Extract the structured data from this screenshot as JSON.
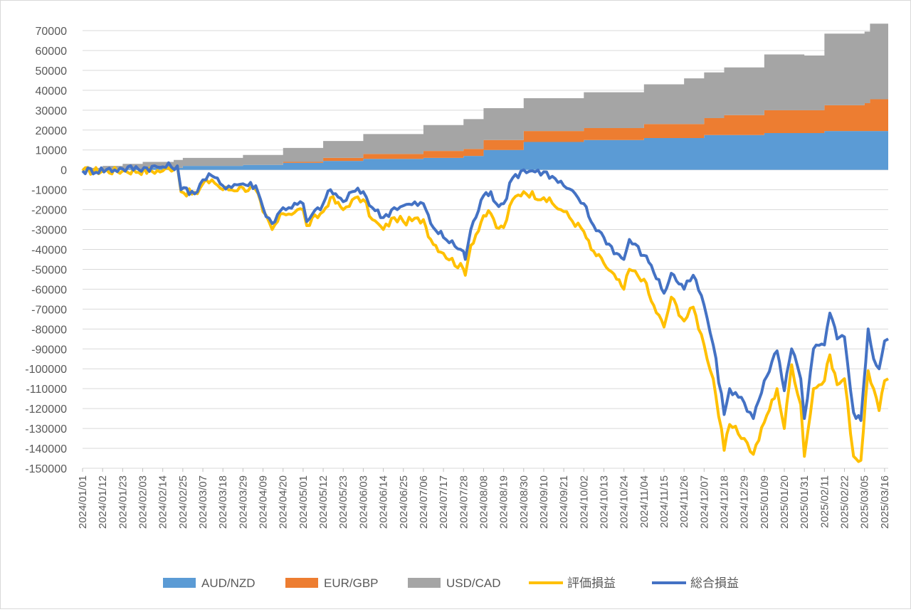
{
  "chart_data": {
    "type": "area+line",
    "title": "",
    "xlabel": "",
    "ylabel": "",
    "ylim": [
      -150000,
      70000
    ],
    "y_step": 10000,
    "xlim": [
      "2024/01/01",
      "2025/03/18"
    ],
    "grid": "horizontal",
    "legend_position": "bottom",
    "x_tick_labels": [
      "2024/01/01",
      "2024/01/12",
      "2024/01/23",
      "2024/02/03",
      "2024/02/14",
      "2024/02/25",
      "2024/03/07",
      "2024/03/18",
      "2024/03/29",
      "2024/04/09",
      "2024/04/20",
      "2024/05/01",
      "2024/05/12",
      "2024/05/23",
      "2024/06/03",
      "2024/06/14",
      "2024/06/25",
      "2024/07/06",
      "2024/07/17",
      "2024/07/28",
      "2024/08/08",
      "2024/08/19",
      "2024/08/30",
      "2024/09/10",
      "2024/09/21",
      "2024/10/02",
      "2024/10/13",
      "2024/10/24",
      "2024/11/04",
      "2024/11/15",
      "2024/11/26",
      "2024/12/07",
      "2024/12/18",
      "2024/12/29",
      "2025/01/09",
      "2025/01/20",
      "2025/01/31",
      "2025/02/11",
      "2025/02/22",
      "2025/03/05",
      "2025/03/16"
    ],
    "stacked_area_series": [
      {
        "name": "AUD/NZD",
        "color": "#5B9BD5",
        "points": [
          [
            "2024/01/01",
            0
          ],
          [
            "2024/01/12",
            500
          ],
          [
            "2024/02/03",
            1000
          ],
          [
            "2024/02/25",
            2000
          ],
          [
            "2024/03/29",
            2500
          ],
          [
            "2024/04/20",
            3500
          ],
          [
            "2024/05/12",
            4500
          ],
          [
            "2024/06/03",
            5500
          ],
          [
            "2024/07/06",
            6000
          ],
          [
            "2024/07/28",
            7000
          ],
          [
            "2024/08/08",
            10000
          ],
          [
            "2024/08/30",
            14000
          ],
          [
            "2024/10/02",
            15000
          ],
          [
            "2024/11/04",
            16000
          ],
          [
            "2024/12/07",
            17500
          ],
          [
            "2025/01/09",
            18500
          ],
          [
            "2025/02/11",
            19500
          ],
          [
            "2025/03/18",
            20500
          ]
        ]
      },
      {
        "name": "EUR/GBP",
        "color": "#ED7D31",
        "points": [
          [
            "2024/01/01",
            0
          ],
          [
            "2024/02/25",
            0
          ],
          [
            "2024/04/20",
            500
          ],
          [
            "2024/05/12",
            1500
          ],
          [
            "2024/06/03",
            2500
          ],
          [
            "2024/07/06",
            3500
          ],
          [
            "2024/07/28",
            3500
          ],
          [
            "2024/08/08",
            5000
          ],
          [
            "2024/08/30",
            5500
          ],
          [
            "2024/10/02",
            6000
          ],
          [
            "2024/11/04",
            7000
          ],
          [
            "2024/12/07",
            8500
          ],
          [
            "2024/12/18",
            10000
          ],
          [
            "2025/01/09",
            11500
          ],
          [
            "2025/02/11",
            13000
          ],
          [
            "2025/03/05",
            14000
          ],
          [
            "2025/03/08",
            16000
          ],
          [
            "2025/03/18",
            16000
          ]
        ]
      },
      {
        "name": "USD/CAD",
        "color": "#A5A5A5",
        "points": [
          [
            "2024/01/01",
            1000
          ],
          [
            "2024/01/12",
            1500
          ],
          [
            "2024/01/23",
            2500
          ],
          [
            "2024/02/03",
            3000
          ],
          [
            "2024/02/14",
            3000
          ],
          [
            "2024/02/20",
            4000
          ],
          [
            "2024/03/29",
            5000
          ],
          [
            "2024/04/20",
            7000
          ],
          [
            "2024/05/12",
            8500
          ],
          [
            "2024/06/03",
            10000
          ],
          [
            "2024/07/06",
            13000
          ],
          [
            "2024/07/28",
            15000
          ],
          [
            "2024/08/08",
            16000
          ],
          [
            "2024/08/30",
            16500
          ],
          [
            "2024/10/02",
            18000
          ],
          [
            "2024/11/04",
            20000
          ],
          [
            "2024/11/26",
            23000
          ],
          [
            "2024/12/18",
            24000
          ],
          [
            "2025/01/09",
            28000
          ],
          [
            "2025/01/31",
            27500
          ],
          [
            "2025/02/11",
            36000
          ],
          [
            "2025/03/05",
            36000
          ],
          [
            "2025/03/08",
            38000
          ],
          [
            "2025/03/18",
            38000
          ]
        ]
      }
    ],
    "line_series": [
      {
        "name": "評価損益",
        "color": "#FFC000",
        "points": [
          [
            "2024/01/01",
            -500
          ],
          [
            "2024/01/23",
            -500
          ],
          [
            "2024/02/14",
            -500
          ],
          [
            "2024/02/22",
            2000
          ],
          [
            "2024/02/24",
            -11000
          ],
          [
            "2024/03/04",
            -12000
          ],
          [
            "2024/03/07",
            -7000
          ],
          [
            "2024/03/12",
            -5000
          ],
          [
            "2024/03/18",
            -10000
          ],
          [
            "2024/03/29",
            -9000
          ],
          [
            "2024/04/05",
            -10000
          ],
          [
            "2024/04/09",
            -21000
          ],
          [
            "2024/04/14",
            -30000
          ],
          [
            "2024/04/20",
            -22000
          ],
          [
            "2024/05/01",
            -20000
          ],
          [
            "2024/05/03",
            -28000
          ],
          [
            "2024/05/12",
            -21000
          ],
          [
            "2024/05/16",
            -14000
          ],
          [
            "2024/05/23",
            -20000
          ],
          [
            "2024/05/28",
            -15000
          ],
          [
            "2024/06/03",
            -15000
          ],
          [
            "2024/06/08",
            -25000
          ],
          [
            "2024/06/14",
            -30000
          ],
          [
            "2024/06/20",
            -24000
          ],
          [
            "2024/06/25",
            -26000
          ],
          [
            "2024/07/06",
            -25000
          ],
          [
            "2024/07/10",
            -35000
          ],
          [
            "2024/07/17",
            -42000
          ],
          [
            "2024/07/28",
            -50000
          ],
          [
            "2024/07/29",
            -53000
          ],
          [
            "2024/08/01",
            -38000
          ],
          [
            "2024/08/08",
            -23000
          ],
          [
            "2024/08/12",
            -22000
          ],
          [
            "2024/08/15",
            -29000
          ],
          [
            "2024/08/19",
            -29000
          ],
          [
            "2024/08/24",
            -15000
          ],
          [
            "2024/08/30",
            -11000
          ],
          [
            "2024/09/10",
            -14000
          ],
          [
            "2024/09/21",
            -21000
          ],
          [
            "2024/10/02",
            -31000
          ],
          [
            "2024/10/06",
            -40000
          ],
          [
            "2024/10/13",
            -47000
          ],
          [
            "2024/10/20",
            -55000
          ],
          [
            "2024/10/24",
            -60000
          ],
          [
            "2024/10/27",
            -50000
          ],
          [
            "2024/11/04",
            -55000
          ],
          [
            "2024/11/08",
            -66000
          ],
          [
            "2024/11/15",
            -79000
          ],
          [
            "2024/11/19",
            -64000
          ],
          [
            "2024/11/26",
            -76000
          ],
          [
            "2024/12/01",
            -69000
          ],
          [
            "2024/12/07",
            -88000
          ],
          [
            "2024/12/12",
            -105000
          ],
          [
            "2024/12/18",
            -141000
          ],
          [
            "2024/12/21",
            -128000
          ],
          [
            "2024/12/29",
            -135000
          ],
          [
            "2025/01/03",
            -143000
          ],
          [
            "2025/01/09",
            -127000
          ],
          [
            "2025/01/16",
            -110000
          ],
          [
            "2025/01/20",
            -130000
          ],
          [
            "2025/01/24",
            -98000
          ],
          [
            "2025/01/29",
            -118000
          ],
          [
            "2025/01/31",
            -144000
          ],
          [
            "2025/02/05",
            -110000
          ],
          [
            "2025/02/11",
            -106000
          ],
          [
            "2025/02/14",
            -93000
          ],
          [
            "2025/02/18",
            -108000
          ],
          [
            "2025/02/22",
            -105000
          ],
          [
            "2025/02/27",
            -144000
          ],
          [
            "2025/03/03",
            -146000
          ],
          [
            "2025/03/07",
            -101000
          ],
          [
            "2025/03/10",
            -110000
          ],
          [
            "2025/03/13",
            -121000
          ],
          [
            "2025/03/16",
            -106000
          ],
          [
            "2025/03/18",
            -105000
          ]
        ]
      },
      {
        "name": "総合損益",
        "color": "#4472C4",
        "points": [
          [
            "2024/01/01",
            -500
          ],
          [
            "2024/01/23",
            500
          ],
          [
            "2024/02/14",
            1500
          ],
          [
            "2024/02/22",
            2000
          ],
          [
            "2024/02/24",
            -10000
          ],
          [
            "2024/03/04",
            -11000
          ],
          [
            "2024/03/07",
            -5000
          ],
          [
            "2024/03/12",
            -3000
          ],
          [
            "2024/03/18",
            -8000
          ],
          [
            "2024/03/29",
            -7000
          ],
          [
            "2024/04/05",
            -8000
          ],
          [
            "2024/04/09",
            -19000
          ],
          [
            "2024/04/14",
            -27000
          ],
          [
            "2024/04/20",
            -19000
          ],
          [
            "2024/05/01",
            -17000
          ],
          [
            "2024/05/03",
            -26000
          ],
          [
            "2024/05/12",
            -17000
          ],
          [
            "2024/05/16",
            -10000
          ],
          [
            "2024/05/23",
            -16000
          ],
          [
            "2024/05/28",
            -11000
          ],
          [
            "2024/06/03",
            -11000
          ],
          [
            "2024/06/08",
            -19000
          ],
          [
            "2024/06/14",
            -24000
          ],
          [
            "2024/06/20",
            -19000
          ],
          [
            "2024/06/25",
            -18000
          ],
          [
            "2024/07/06",
            -17000
          ],
          [
            "2024/07/10",
            -27000
          ],
          [
            "2024/07/17",
            -34000
          ],
          [
            "2024/07/28",
            -41000
          ],
          [
            "2024/07/29",
            -45000
          ],
          [
            "2024/08/01",
            -30000
          ],
          [
            "2024/08/08",
            -13000
          ],
          [
            "2024/08/12",
            -11000
          ],
          [
            "2024/08/15",
            -17000
          ],
          [
            "2024/08/19",
            -17000
          ],
          [
            "2024/08/24",
            -4000
          ],
          [
            "2024/08/30",
            0
          ],
          [
            "2024/09/10",
            -1000
          ],
          [
            "2024/09/21",
            -8000
          ],
          [
            "2024/10/02",
            -17000
          ],
          [
            "2024/10/06",
            -26000
          ],
          [
            "2024/10/13",
            -34000
          ],
          [
            "2024/10/20",
            -42000
          ],
          [
            "2024/10/24",
            -45000
          ],
          [
            "2024/10/27",
            -35000
          ],
          [
            "2024/11/04",
            -43000
          ],
          [
            "2024/11/08",
            -48000
          ],
          [
            "2024/11/15",
            -62000
          ],
          [
            "2024/11/19",
            -52000
          ],
          [
            "2024/11/26",
            -60000
          ],
          [
            "2024/12/01",
            -53000
          ],
          [
            "2024/12/07",
            -68000
          ],
          [
            "2024/12/12",
            -88000
          ],
          [
            "2024/12/18",
            -123000
          ],
          [
            "2024/12/21",
            -110000
          ],
          [
            "2024/12/29",
            -117000
          ],
          [
            "2025/01/03",
            -125000
          ],
          [
            "2025/01/09",
            -106000
          ],
          [
            "2025/01/16",
            -91000
          ],
          [
            "2025/01/20",
            -111000
          ],
          [
            "2025/01/24",
            -90000
          ],
          [
            "2025/01/29",
            -105000
          ],
          [
            "2025/01/31",
            -125000
          ],
          [
            "2025/02/05",
            -90000
          ],
          [
            "2025/02/11",
            -88000
          ],
          [
            "2025/02/14",
            -72000
          ],
          [
            "2025/02/18",
            -85000
          ],
          [
            "2025/02/22",
            -84000
          ],
          [
            "2025/02/27",
            -122000
          ],
          [
            "2025/03/03",
            -126000
          ],
          [
            "2025/03/07",
            -80000
          ],
          [
            "2025/03/10",
            -95000
          ],
          [
            "2025/03/13",
            -100000
          ],
          [
            "2025/03/16",
            -86000
          ],
          [
            "2025/03/18",
            -85000
          ]
        ]
      }
    ],
    "legend": [
      {
        "name": "AUD/NZD",
        "kind": "area",
        "color": "#5B9BD5"
      },
      {
        "name": "EUR/GBP",
        "kind": "area",
        "color": "#ED7D31"
      },
      {
        "name": "USD/CAD",
        "kind": "area",
        "color": "#A5A5A5"
      },
      {
        "name": "評価損益",
        "kind": "line",
        "color": "#FFC000"
      },
      {
        "name": "総合損益",
        "kind": "line",
        "color": "#4472C4"
      }
    ]
  }
}
